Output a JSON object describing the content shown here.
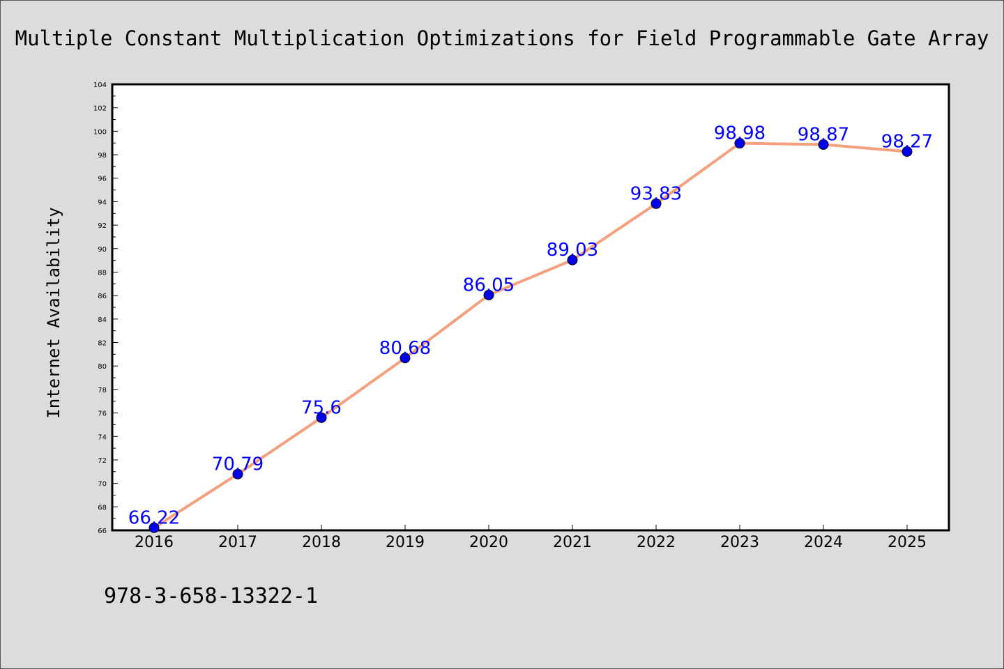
{
  "chart_data": {
    "type": "line",
    "title": "Multiple Constant Multiplication Optimizations for Field Programmable Gate Array",
    "xlabel": "",
    "ylabel": "Internet Availability",
    "categories": [
      "2016",
      "2017",
      "2018",
      "2019",
      "2020",
      "2021",
      "2022",
      "2023",
      "2024",
      "2025"
    ],
    "series": [
      {
        "values": [
          66.22,
          70.79,
          75.6,
          80.68,
          86.05,
          89.03,
          93.83,
          98.98,
          98.87,
          98.27
        ],
        "data_labels": [
          "66.22",
          "70.79",
          "75.6",
          "80.68",
          "86.05",
          "89.03",
          "93.83",
          "98.98",
          "98.87",
          "98.27"
        ],
        "line_color": "#f4a07e",
        "marker_color": "#0000ee"
      }
    ],
    "ylim": [
      66,
      104
    ],
    "yticks": [
      "66",
      "68",
      "70",
      "72",
      "74",
      "76",
      "78",
      "80",
      "82",
      "84",
      "86",
      "88",
      "90",
      "92",
      "94",
      "96",
      "98",
      "100",
      "102",
      "104"
    ],
    "grid": false,
    "legend": "none",
    "label_color": "#0000ff"
  },
  "footer": {
    "isbn": "978-3-658-13322-1"
  }
}
